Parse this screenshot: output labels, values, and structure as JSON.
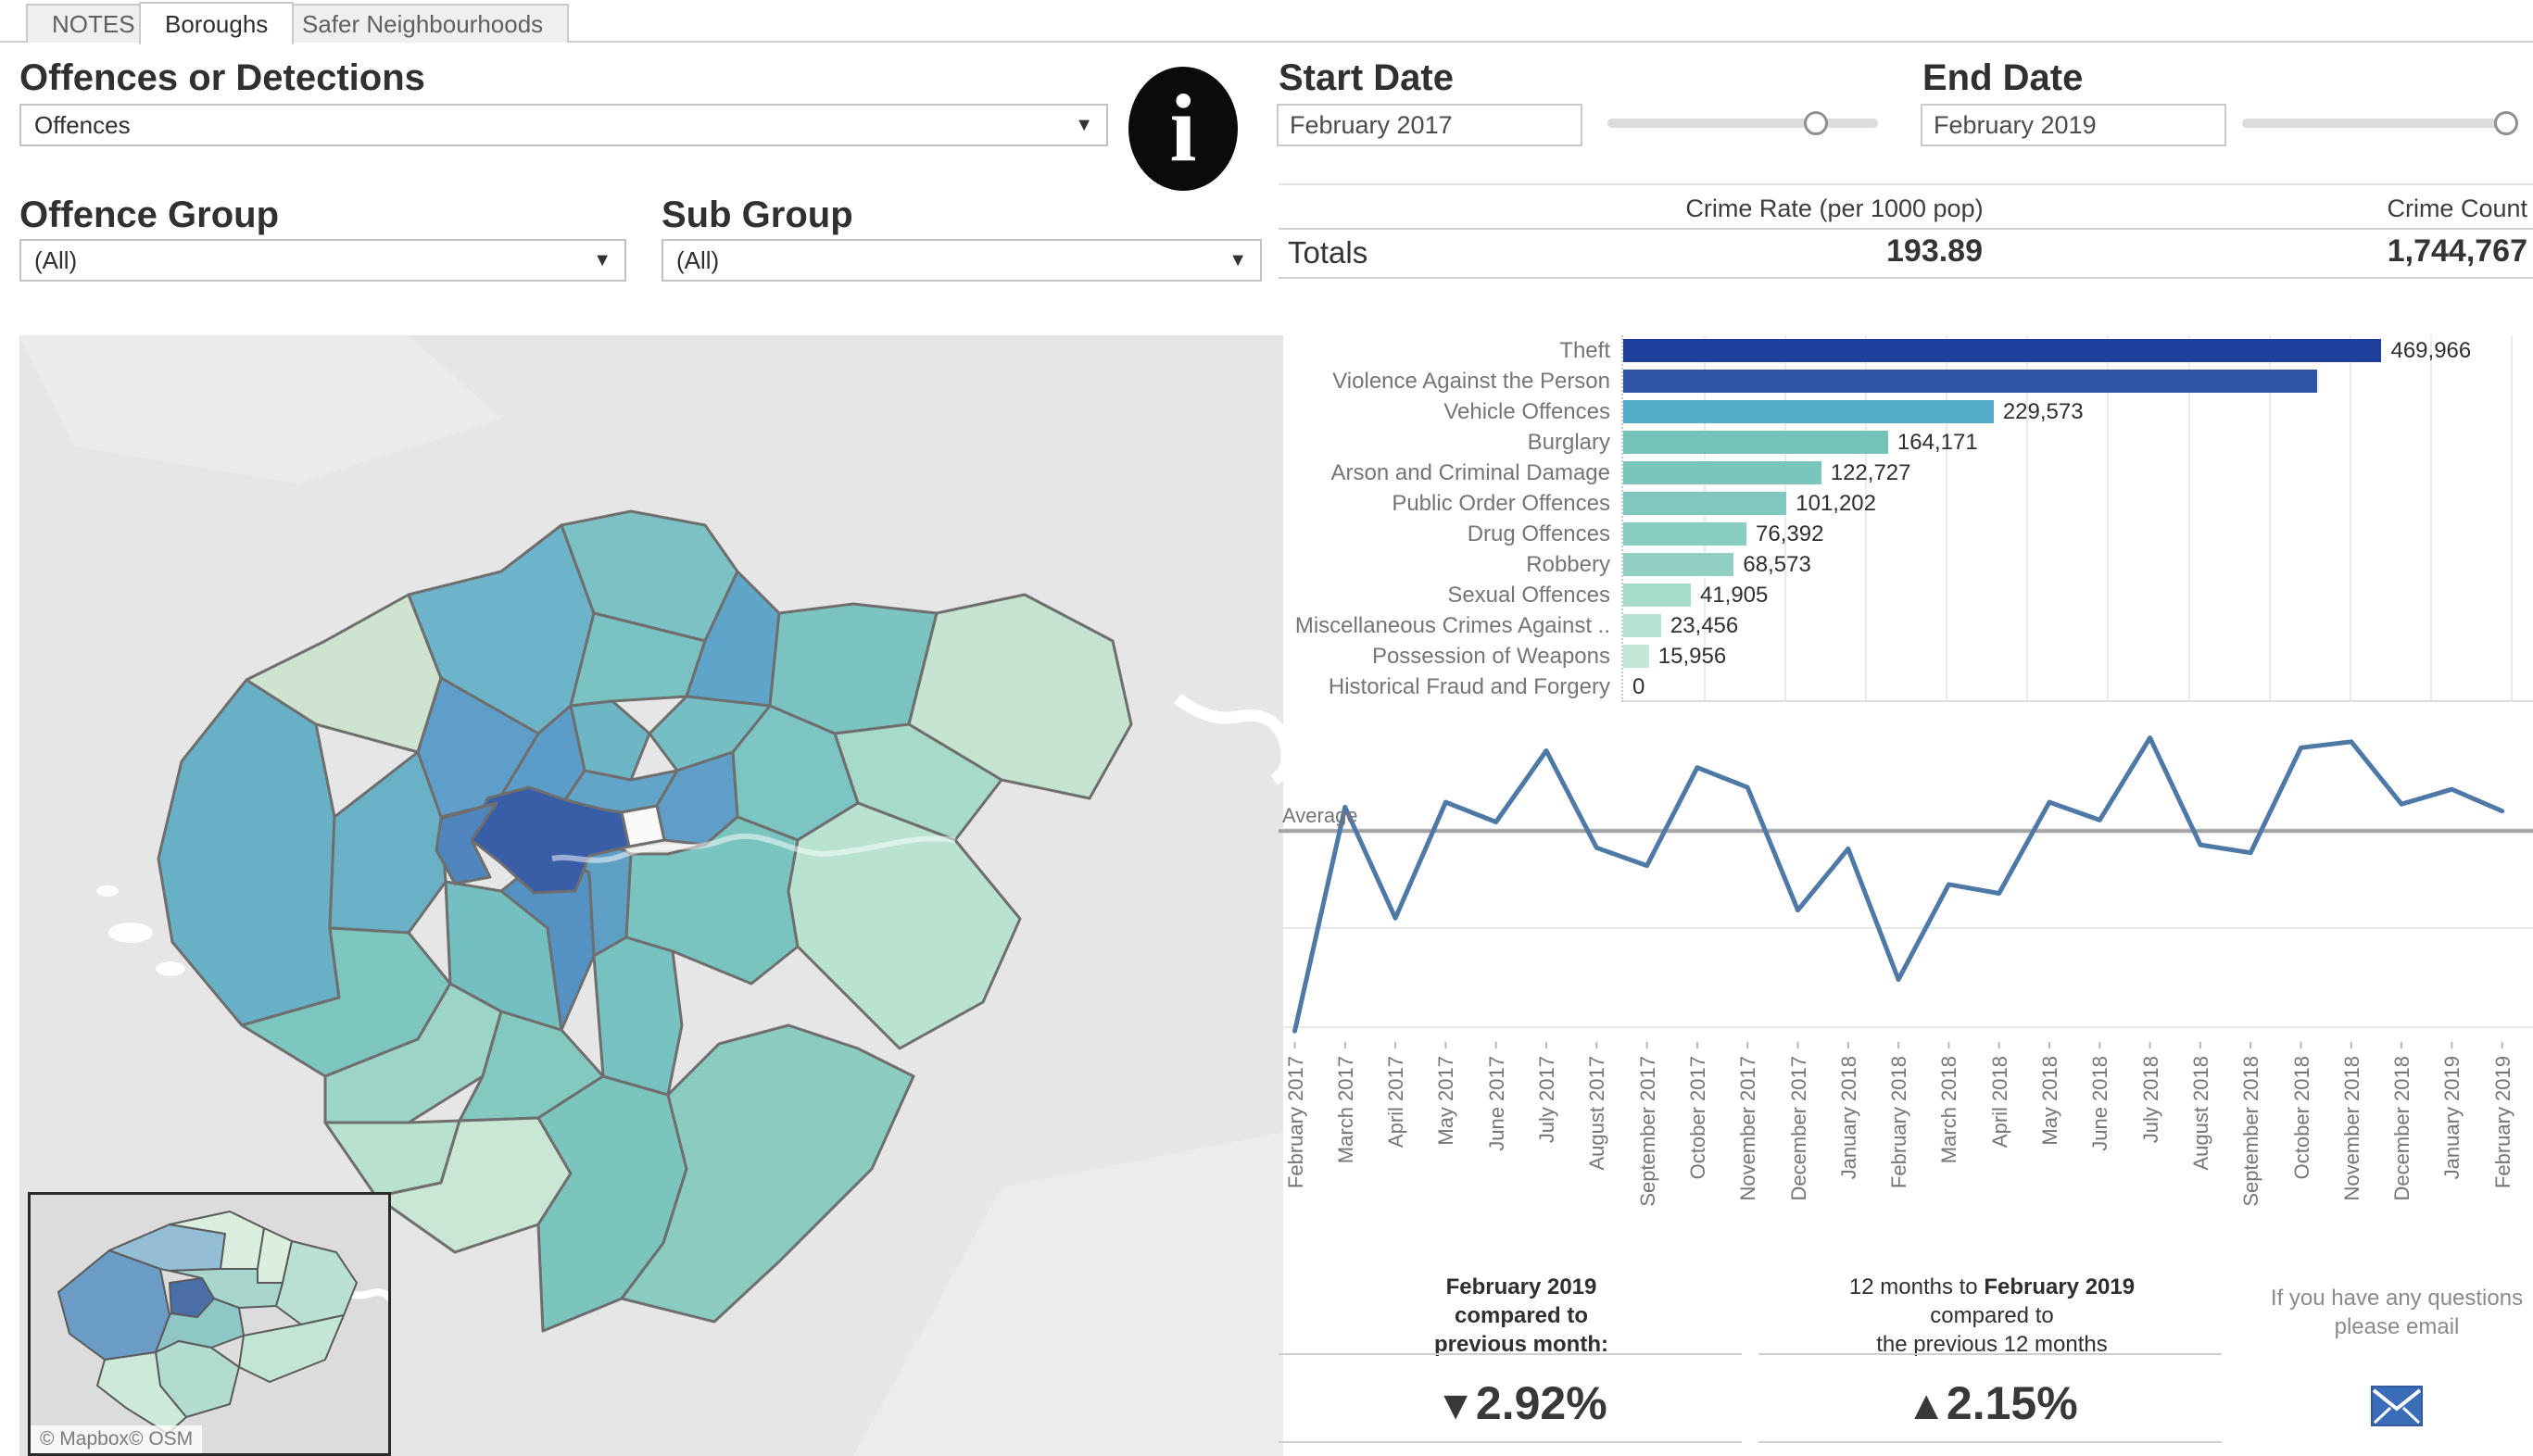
{
  "tabs": {
    "items": [
      {
        "label": "NOTES",
        "active": false
      },
      {
        "label": "Boroughs",
        "active": true
      },
      {
        "label": "Safer Neighbourhoods",
        "active": false
      }
    ]
  },
  "filters": {
    "offence_type": {
      "label": "Offences or Detections",
      "value": "Offences"
    },
    "offence_group": {
      "label": "Offence Group",
      "value": "(All)"
    },
    "sub_group": {
      "label": "Sub Group",
      "value": "(All)"
    },
    "start_date": {
      "label": "Start Date",
      "value": "February 2017"
    },
    "end_date": {
      "label": "End Date",
      "value": "February 2019"
    }
  },
  "totals": {
    "label": "Totals",
    "crime_rate_header": "Crime Rate (per 1000 pop)",
    "crime_rate_value": "193.89",
    "crime_count_header": "Crime Count",
    "crime_count_value": "1,744,767"
  },
  "map": {
    "attribution": "© Mapbox© OSM",
    "palette": [
      "#3a5da8",
      "#4f86bd",
      "#5392c2",
      "#5b9cc8",
      "#5f9fc7",
      "#68b0c6",
      "#6db4ca",
      "#74bec4",
      "#7cc2c4",
      "#7cc5be",
      "#84c9c0",
      "#8accc0",
      "#9dd4c8",
      "#a8dac9",
      "#b9e2d0",
      "#c4e4cf",
      "#c9e7d4",
      "#cfe4d0",
      "#fafafa"
    ]
  },
  "chart_data": [
    {
      "id": "offence-group-bars",
      "type": "bar",
      "orientation": "horizontal",
      "categories": [
        "Theft",
        "Violence Against the Person",
        "Vehicle Offences",
        "Burglary",
        "Arson and Criminal Damage",
        "Public Order Offences",
        "Drug Offences",
        "Robbery",
        "Sexual Offences",
        "Miscellaneous Crimes Against ..",
        "Possession of Weapons",
        "Historical Fraud and Forgery"
      ],
      "values": [
        469966,
        430000,
        229573,
        164171,
        122727,
        101202,
        76392,
        68573,
        41905,
        23456,
        15956,
        0
      ],
      "value_labels": [
        "469,966",
        "",
        "229,573",
        "164,171",
        "122,727",
        "101,202",
        "76,392",
        "68,573",
        "41,905",
        "23,456",
        "15,956",
        "0"
      ],
      "bar_colors": [
        "#1e3f9b",
        "#2e55a5",
        "#54aec8",
        "#74c3bb",
        "#79c5bc",
        "#80c8bd",
        "#89ccc0",
        "#92d0c3",
        "#a7dbca",
        "#b8e2d1",
        "#c2e7d7",
        "#c2e7d7"
      ],
      "xlim": [
        0,
        565000
      ],
      "gridline_interval": 50000,
      "note": "value label for Violence Against the Person is not displayed in source; its bar value is estimated from bar length"
    },
    {
      "id": "monthly-trend",
      "type": "line",
      "x": [
        "February 2017",
        "March 2017",
        "April 2017",
        "May 2017",
        "June 2017",
        "July 2017",
        "August 2017",
        "September 2017",
        "October 2017",
        "November 2017",
        "December 2017",
        "January 2018",
        "February 2018",
        "March 2018",
        "April 2018",
        "May 2018",
        "June 2018",
        "July 2018",
        "August 2018",
        "September 2018",
        "October 2018",
        "November 2018",
        "December 2018",
        "January 2019",
        "February 2019"
      ],
      "values": [
        49600,
        72200,
        61000,
        72700,
        70700,
        77900,
        68100,
        66300,
        76200,
        74200,
        61800,
        68000,
        54800,
        64400,
        63500,
        72700,
        70900,
        79200,
        68400,
        67600,
        78200,
        78800,
        72500,
        74000,
        71800
      ],
      "values_estimated_from_pixels": true,
      "average_label": "Average",
      "average_value": 69790,
      "ylim": [
        48500,
        80000
      ],
      "gridlines": [
        50000,
        60000,
        70000
      ],
      "line_color": "#4e79a7",
      "average_line_color": "#a3a3a3",
      "legend": "none",
      "grid": true
    }
  ],
  "kpis": {
    "month_change": {
      "title_line1": "February 2019",
      "title_line2": "compared to",
      "title_line3": "previous month:",
      "arrow": "▼",
      "direction": "down",
      "value": "2.92%"
    },
    "year_change": {
      "title_line1_prefix": "12 months to ",
      "title_line1_bold": "February 2019",
      "title_line2": "compared to",
      "title_line3": "the previous 12 months",
      "arrow": "▲",
      "direction": "up",
      "value": "2.15%"
    }
  },
  "contact": {
    "line1": "If you have any questions",
    "line2": "please email"
  },
  "colors": {
    "accent_line": "#4e79a7",
    "kpi_text": "#383838",
    "envelope_blue": "#3a6db8",
    "map_darkest": "#3a5da8",
    "bar_darkest": "#1e3f9b"
  }
}
